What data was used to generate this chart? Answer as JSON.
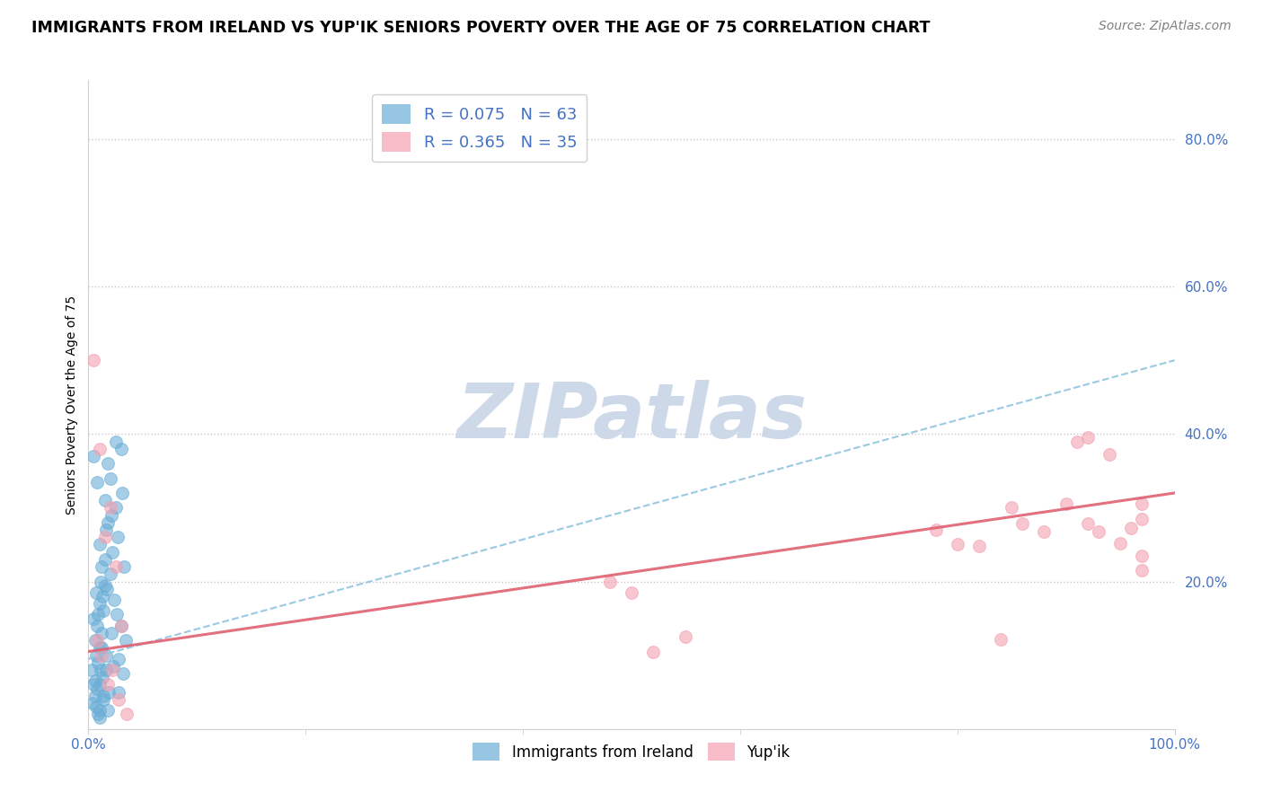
{
  "title": "IMMIGRANTS FROM IRELAND VS YUP'IK SENIORS POVERTY OVER THE AGE OF 75 CORRELATION CHART",
  "source": "Source: ZipAtlas.com",
  "ylabel": "Seniors Poverty Over the Age of 75",
  "legend_label_blue": "Immigrants from Ireland",
  "legend_label_pink": "Yup'ik",
  "legend_r_blue": "R = 0.075",
  "legend_n_blue": "N = 63",
  "legend_r_pink": "R = 0.365",
  "legend_n_pink": "N = 35",
  "xlim": [
    0.0,
    1.0
  ],
  "ylim": [
    0.0,
    0.88
  ],
  "ytick_values": [
    0.2,
    0.4,
    0.6,
    0.8
  ],
  "ytick_labels": [
    "20.0%",
    "40.0%",
    "60.0%",
    "80.0%"
  ],
  "xtick_values": [
    0.0,
    1.0
  ],
  "xtick_labels": [
    "0.0%",
    "100.0%"
  ],
  "blue_x": [
    0.003,
    0.004,
    0.005,
    0.005,
    0.006,
    0.006,
    0.007,
    0.007,
    0.008,
    0.008,
    0.009,
    0.009,
    0.01,
    0.01,
    0.01,
    0.01,
    0.01,
    0.011,
    0.011,
    0.012,
    0.012,
    0.013,
    0.013,
    0.014,
    0.014,
    0.015,
    0.015,
    0.016,
    0.016,
    0.017,
    0.018,
    0.018,
    0.019,
    0.02,
    0.02,
    0.021,
    0.021,
    0.022,
    0.023,
    0.024,
    0.025,
    0.025,
    0.026,
    0.027,
    0.028,
    0.028,
    0.03,
    0.03,
    0.031,
    0.032,
    0.033,
    0.034,
    0.005,
    0.006,
    0.007,
    0.008,
    0.009,
    0.01,
    0.012,
    0.014,
    0.015,
    0.016,
    0.018
  ],
  "blue_y": [
    0.08,
    0.035,
    0.15,
    0.06,
    0.12,
    0.045,
    0.1,
    0.03,
    0.14,
    0.055,
    0.09,
    0.02,
    0.25,
    0.17,
    0.11,
    0.06,
    0.025,
    0.2,
    0.08,
    0.22,
    0.13,
    0.18,
    0.07,
    0.16,
    0.04,
    0.31,
    0.23,
    0.27,
    0.1,
    0.19,
    0.36,
    0.28,
    0.05,
    0.34,
    0.21,
    0.29,
    0.13,
    0.24,
    0.085,
    0.175,
    0.39,
    0.3,
    0.155,
    0.26,
    0.095,
    0.05,
    0.38,
    0.14,
    0.32,
    0.075,
    0.22,
    0.12,
    0.37,
    0.065,
    0.185,
    0.335,
    0.155,
    0.015,
    0.11,
    0.045,
    0.195,
    0.08,
    0.025
  ],
  "pink_x": [
    0.005,
    0.008,
    0.01,
    0.012,
    0.015,
    0.018,
    0.02,
    0.022,
    0.025,
    0.028,
    0.03,
    0.035,
    0.48,
    0.5,
    0.78,
    0.8,
    0.82,
    0.84,
    0.86,
    0.88,
    0.9,
    0.91,
    0.92,
    0.93,
    0.94,
    0.95,
    0.96,
    0.97,
    0.97,
    0.97,
    0.97,
    0.92,
    0.85,
    0.52,
    0.55
  ],
  "pink_y": [
    0.5,
    0.12,
    0.38,
    0.1,
    0.26,
    0.06,
    0.3,
    0.08,
    0.22,
    0.04,
    0.14,
    0.02,
    0.2,
    0.185,
    0.27,
    0.25,
    0.248,
    0.122,
    0.278,
    0.268,
    0.305,
    0.39,
    0.278,
    0.268,
    0.372,
    0.252,
    0.272,
    0.235,
    0.215,
    0.305,
    0.285,
    0.395,
    0.3,
    0.105,
    0.125
  ],
  "blue_color": "#6baed6",
  "pink_color": "#f4a0b0",
  "blue_line_color": "#8ec4e0",
  "pink_line_color": "#e06070",
  "blue_trend": [
    0.095,
    0.5
  ],
  "pink_trend": [
    0.105,
    0.32
  ],
  "watermark_text": "ZIPatlas",
  "watermark_color": "#cdd9e8",
  "title_fontsize": 12.5,
  "axis_label_fontsize": 10,
  "tick_fontsize": 11,
  "source_fontsize": 10
}
